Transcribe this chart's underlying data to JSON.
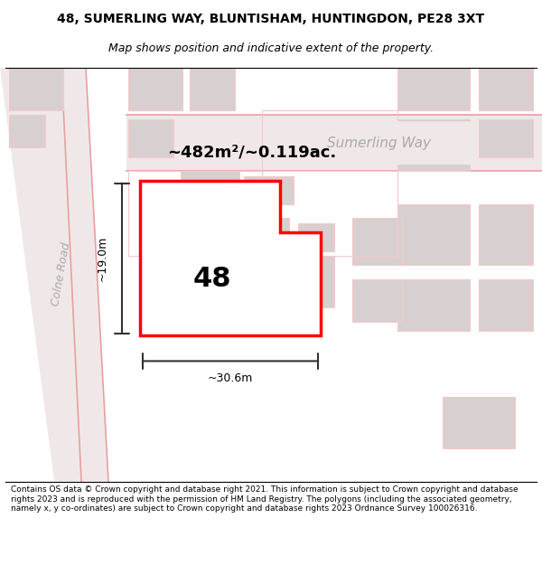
{
  "title_line1": "48, SUMERLING WAY, BLUNTISHAM, HUNTINGDON, PE28 3XT",
  "title_line2": "Map shows position and indicative extent of the property.",
  "footer_text": "Contains OS data © Crown copyright and database right 2021. This information is subject to Crown copyright and database rights 2023 and is reproduced with the permission of HM Land Registry. The polygons (including the associated geometry, namely x, y co-ordinates) are subject to Crown copyright and database rights 2023 Ordnance Survey 100026316.",
  "map_bg": "#f5f0f0",
  "street_label": "Sumerling Way",
  "road_label": "Colne Road",
  "area_label": "~482m²/~0.119ac.",
  "number_label": "48",
  "width_label": "~30.6m",
  "height_label": "~19.0m",
  "plot_color": "#ff0000",
  "road_color": "#f7c8c8",
  "building_fill": "#d8d0d0",
  "dim_color": "#333333"
}
